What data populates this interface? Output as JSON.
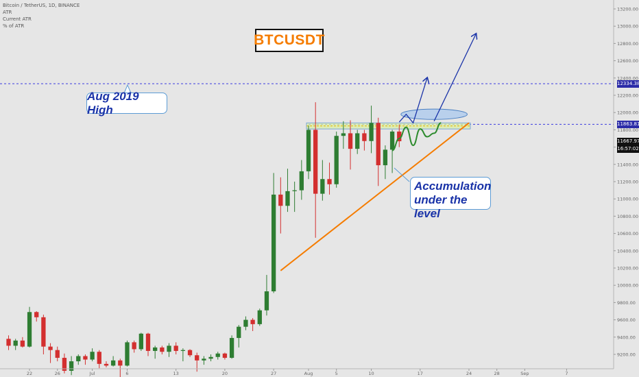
{
  "legend": {
    "title": "Bitcoin / TetherUS, 1D, BINANCE",
    "indicators": [
      "ATR",
      "Current ATR",
      "% of ATR"
    ]
  },
  "symbol_label": "BTCUSDT",
  "annotations": {
    "aug_high": "Aug 2019 High",
    "accumulation": [
      "Accumulation",
      "under the level"
    ]
  },
  "price_tags": {
    "aug_2019_high": "12334.38",
    "resistance": "11863.81",
    "last_price": "11667.97",
    "countdown": "16:57:02"
  },
  "colors": {
    "up": "#2e7d32",
    "down": "#d32f2f",
    "trendline": "#f57c00",
    "projection": "#1a33a8",
    "path": "#2e8b2e",
    "level_line": "#3a3adf"
  },
  "chart_data": {
    "type": "candlestick",
    "ylim": [
      9100,
      13300
    ],
    "y_ticks": [
      9200,
      9400,
      9600,
      9800,
      10000,
      10200,
      10400,
      10600,
      10800,
      11000,
      11200,
      11400,
      11600,
      11800,
      12000,
      12200,
      12400,
      12600,
      12800,
      13000,
      13200
    ],
    "y_tick_labels": [
      "9200.00",
      "9400.00",
      "9600.00",
      "9800.00",
      "10000.00",
      "10200.00",
      "10400.00",
      "10600.00",
      "10800.00",
      "11000.00",
      "11200.00",
      "11400.00",
      "11600.00",
      "11800.00",
      "12000.00",
      "12200.00",
      "12400.00",
      "12600.00",
      "12800.00",
      "13000.00",
      "13200.00"
    ],
    "x_ticks": [
      {
        "label": "22",
        "date": "2020-06-22"
      },
      {
        "label": "26",
        "date": "2020-06-26"
      },
      {
        "label": "Jul",
        "date": "2020-07-01"
      },
      {
        "label": "6",
        "date": "2020-07-06"
      },
      {
        "label": "13",
        "date": "2020-07-13"
      },
      {
        "label": "20",
        "date": "2020-07-20"
      },
      {
        "label": "27",
        "date": "2020-07-27"
      },
      {
        "label": "Aug",
        "date": "2020-08-01"
      },
      {
        "label": "5",
        "date": "2020-08-05"
      },
      {
        "label": "10",
        "date": "2020-08-10"
      },
      {
        "label": "17",
        "date": "2020-08-17"
      },
      {
        "label": "24",
        "date": "2020-08-24"
      },
      {
        "label": "28",
        "date": "2020-08-28"
      },
      {
        "label": "Sep",
        "date": "2020-09-01"
      },
      {
        "label": "7",
        "date": "2020-09-07"
      }
    ],
    "candles": [
      {
        "date": "2020-06-19",
        "o": 9380,
        "h": 9420,
        "l": 9250,
        "c": 9300
      },
      {
        "date": "2020-06-20",
        "o": 9300,
        "h": 9380,
        "l": 9250,
        "c": 9360
      },
      {
        "date": "2020-06-21",
        "o": 9360,
        "h": 9400,
        "l": 9280,
        "c": 9290
      },
      {
        "date": "2020-06-22",
        "o": 9290,
        "h": 9750,
        "l": 9280,
        "c": 9690
      },
      {
        "date": "2020-06-23",
        "o": 9690,
        "h": 9700,
        "l": 9580,
        "c": 9630
      },
      {
        "date": "2020-06-24",
        "o": 9630,
        "h": 9660,
        "l": 9200,
        "c": 9290
      },
      {
        "date": "2020-06-25",
        "o": 9290,
        "h": 9330,
        "l": 9100,
        "c": 9250
      },
      {
        "date": "2020-06-26",
        "o": 9250,
        "h": 9290,
        "l": 9120,
        "c": 9160
      },
      {
        "date": "2020-06-27",
        "o": 9160,
        "h": 9210,
        "l": 8980,
        "c": 9010
      },
      {
        "date": "2020-06-28",
        "o": 9010,
        "h": 9180,
        "l": 8960,
        "c": 9120
      },
      {
        "date": "2020-06-29",
        "o": 9120,
        "h": 9200,
        "l": 9080,
        "c": 9180
      },
      {
        "date": "2020-06-30",
        "o": 9180,
        "h": 9200,
        "l": 9080,
        "c": 9140
      },
      {
        "date": "2020-07-01",
        "o": 9140,
        "h": 9270,
        "l": 9120,
        "c": 9230
      },
      {
        "date": "2020-07-02",
        "o": 9230,
        "h": 9250,
        "l": 9040,
        "c": 9090
      },
      {
        "date": "2020-07-03",
        "o": 9090,
        "h": 9120,
        "l": 9050,
        "c": 9070
      },
      {
        "date": "2020-07-04",
        "o": 9070,
        "h": 9180,
        "l": 9060,
        "c": 9130
      },
      {
        "date": "2020-07-05",
        "o": 9130,
        "h": 9150,
        "l": 8900,
        "c": 9070
      },
      {
        "date": "2020-07-06",
        "o": 9070,
        "h": 9360,
        "l": 9060,
        "c": 9340
      },
      {
        "date": "2020-07-07",
        "o": 9340,
        "h": 9360,
        "l": 9220,
        "c": 9260
      },
      {
        "date": "2020-07-08",
        "o": 9260,
        "h": 9450,
        "l": 9240,
        "c": 9440
      },
      {
        "date": "2020-07-09",
        "o": 9440,
        "h": 9450,
        "l": 9180,
        "c": 9240
      },
      {
        "date": "2020-07-10",
        "o": 9240,
        "h": 9300,
        "l": 9150,
        "c": 9280
      },
      {
        "date": "2020-07-11",
        "o": 9280,
        "h": 9300,
        "l": 9200,
        "c": 9230
      },
      {
        "date": "2020-07-12",
        "o": 9230,
        "h": 9330,
        "l": 9170,
        "c": 9300
      },
      {
        "date": "2020-07-13",
        "o": 9300,
        "h": 9340,
        "l": 9200,
        "c": 9240
      },
      {
        "date": "2020-07-14",
        "o": 9240,
        "h": 9270,
        "l": 9120,
        "c": 9250
      },
      {
        "date": "2020-07-15",
        "o": 9250,
        "h": 9260,
        "l": 9170,
        "c": 9190
      },
      {
        "date": "2020-07-16",
        "o": 9190,
        "h": 9220,
        "l": 9000,
        "c": 9130
      },
      {
        "date": "2020-07-17",
        "o": 9130,
        "h": 9180,
        "l": 9080,
        "c": 9150
      },
      {
        "date": "2020-07-18",
        "o": 9150,
        "h": 9200,
        "l": 9120,
        "c": 9170
      },
      {
        "date": "2020-07-19",
        "o": 9170,
        "h": 9230,
        "l": 9140,
        "c": 9210
      },
      {
        "date": "2020-07-20",
        "o": 9210,
        "h": 9220,
        "l": 9140,
        "c": 9160
      },
      {
        "date": "2020-07-21",
        "o": 9160,
        "h": 9420,
        "l": 9150,
        "c": 9390
      },
      {
        "date": "2020-07-22",
        "o": 9390,
        "h": 9540,
        "l": 9280,
        "c": 9520
      },
      {
        "date": "2020-07-23",
        "o": 9520,
        "h": 9640,
        "l": 9480,
        "c": 9600
      },
      {
        "date": "2020-07-24",
        "o": 9600,
        "h": 9620,
        "l": 9470,
        "c": 9550
      },
      {
        "date": "2020-07-25",
        "o": 9550,
        "h": 9730,
        "l": 9530,
        "c": 9710
      },
      {
        "date": "2020-07-26",
        "o": 9710,
        "h": 10120,
        "l": 9650,
        "c": 9930
      },
      {
        "date": "2020-07-27",
        "o": 9930,
        "h": 11300,
        "l": 9910,
        "c": 11050
      },
      {
        "date": "2020-07-28",
        "o": 11050,
        "h": 11250,
        "l": 10600,
        "c": 10920
      },
      {
        "date": "2020-07-29",
        "o": 10920,
        "h": 11350,
        "l": 10850,
        "c": 11090
      },
      {
        "date": "2020-07-30",
        "o": 11090,
        "h": 11200,
        "l": 10850,
        "c": 11100
      },
      {
        "date": "2020-07-31",
        "o": 11100,
        "h": 11450,
        "l": 10990,
        "c": 11320
      },
      {
        "date": "2020-08-01",
        "o": 11320,
        "h": 11850,
        "l": 11230,
        "c": 11800
      },
      {
        "date": "2020-08-02",
        "o": 11800,
        "h": 12120,
        "l": 10550,
        "c": 11060
      },
      {
        "date": "2020-08-03",
        "o": 11060,
        "h": 11450,
        "l": 10980,
        "c": 11230
      },
      {
        "date": "2020-08-04",
        "o": 11230,
        "h": 11420,
        "l": 11050,
        "c": 11170
      },
      {
        "date": "2020-08-05",
        "o": 11170,
        "h": 11780,
        "l": 11130,
        "c": 11730
      },
      {
        "date": "2020-08-06",
        "o": 11730,
        "h": 11900,
        "l": 11580,
        "c": 11760
      },
      {
        "date": "2020-08-07",
        "o": 11760,
        "h": 11910,
        "l": 11340,
        "c": 11580
      },
      {
        "date": "2020-08-08",
        "o": 11580,
        "h": 11800,
        "l": 11520,
        "c": 11760
      },
      {
        "date": "2020-08-09",
        "o": 11760,
        "h": 11800,
        "l": 11560,
        "c": 11670
      },
      {
        "date": "2020-08-10",
        "o": 11670,
        "h": 12080,
        "l": 11530,
        "c": 11880
      },
      {
        "date": "2020-08-11",
        "o": 11880,
        "h": 11940,
        "l": 11150,
        "c": 11390
      },
      {
        "date": "2020-08-12",
        "o": 11390,
        "h": 11620,
        "l": 11230,
        "c": 11570
      },
      {
        "date": "2020-08-13",
        "o": 11570,
        "h": 11800,
        "l": 11300,
        "c": 11780
      },
      {
        "date": "2020-08-14",
        "o": 11780,
        "h": 11860,
        "l": 11600,
        "c": 11668
      }
    ],
    "levels": [
      {
        "name": "aug-2019-high",
        "y": 12334.38
      },
      {
        "name": "resistance",
        "y": 11863.81
      }
    ],
    "trendline": {
      "from": {
        "date": "2020-07-28",
        "y": 10170
      },
      "to": {
        "date": "2020-08-24",
        "y": 11880
      }
    },
    "resistance_zone": {
      "from_date": "2020-08-01",
      "to_date": "2020-08-24",
      "y_top": 11880,
      "y_bottom": 11810
    },
    "ellipse": {
      "center_date": "2020-08-19",
      "center_y": 11980,
      "width_days": 9.5,
      "height_price": 120
    },
    "projection_paths": [
      [
        {
          "date": "2020-08-14",
          "y": 11890
        },
        {
          "date": "2020-08-15",
          "y": 11980
        },
        {
          "date": "2020-08-16",
          "y": 11880
        },
        {
          "date": "2020-08-18",
          "y": 12400
        }
      ],
      [
        {
          "date": "2020-08-19",
          "y": 11900
        },
        {
          "date": "2020-08-25",
          "y": 12910
        }
      ]
    ],
    "accumulation_path": [
      {
        "date": "2020-08-13",
        "y": 11560
      },
      {
        "date": "2020-08-14",
        "y": 11700
      },
      {
        "date": "2020-08-15",
        "y": 11830
      },
      {
        "date": "2020-08-16",
        "y": 11620
      },
      {
        "date": "2020-08-17",
        "y": 11810
      },
      {
        "date": "2020-08-18",
        "y": 11720
      },
      {
        "date": "2020-08-19",
        "y": 11760
      },
      {
        "date": "2020-08-20",
        "y": 11880
      }
    ]
  }
}
